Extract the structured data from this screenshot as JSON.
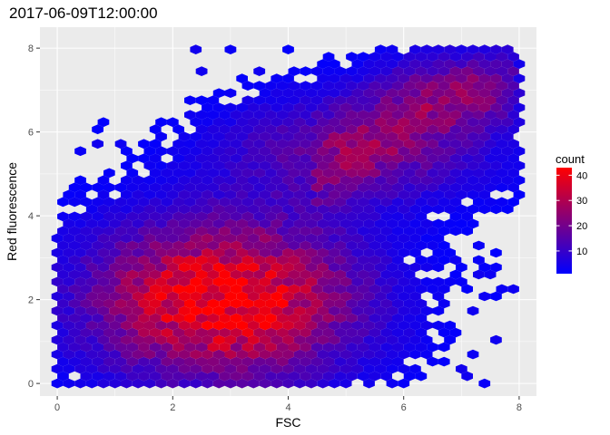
{
  "chart_data": {
    "type": "hexbin",
    "title": "2017-06-09T12:00:00",
    "xlabel": "FSC",
    "ylabel": "Red fluorescence",
    "xlim": [
      -0.3,
      8.3
    ],
    "ylim": [
      -0.3,
      8.5
    ],
    "x_ticks": [
      0,
      2,
      4,
      6,
      8
    ],
    "x_tick_labels": [
      "0",
      "2",
      "4",
      "6",
      "8"
    ],
    "y_ticks": [
      0,
      2,
      4,
      6,
      8
    ],
    "y_tick_labels": [
      "0",
      "2",
      "4",
      "6",
      "8"
    ],
    "grid": true,
    "panel_background": "#ebebeb",
    "grid_color": "#ffffff",
    "legend": {
      "title": "count",
      "position": "right",
      "ticks": [
        10,
        20,
        30,
        40
      ],
      "tick_labels": [
        "10",
        "20",
        "30",
        "40"
      ],
      "range": [
        1,
        43
      ],
      "low_color": "#0000ff",
      "high_color": "#ff0000"
    },
    "density_clusters": [
      {
        "name_hint": "lower",
        "cx": 2.9,
        "cy": 2.0,
        "sx": 1.6,
        "sy": 1.3,
        "peak": 43
      },
      {
        "name_hint": "upper",
        "cx": 5.2,
        "cy": 5.6,
        "sx": 1.6,
        "sy": 0.9,
        "peak": 18
      },
      {
        "name_hint": "diagonal",
        "cx": 6.8,
        "cy": 7.0,
        "sx": 0.9,
        "sy": 0.6,
        "peak": 16
      }
    ]
  }
}
